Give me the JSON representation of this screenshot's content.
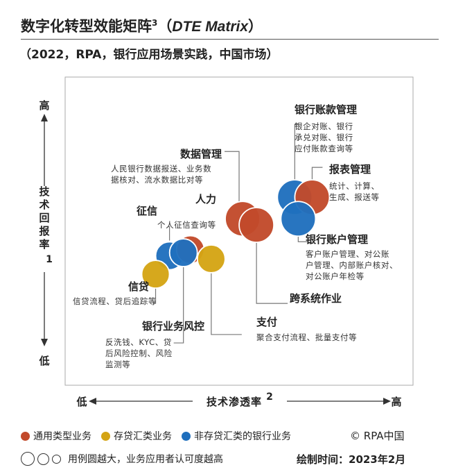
{
  "header": {
    "title_main": "数字化转型效能矩阵",
    "title_sup": "3",
    "title_open": "（",
    "title_en": "DTE Matrix",
    "title_close": "）",
    "subtitle": "（2022，RPA，银行应用场景实践，中国市场）"
  },
  "chart_data": {
    "type": "scatter",
    "title": "数字化转型效能矩阵（DTE Matrix）",
    "xlabel": "技术渗透率",
    "xlabel_sup": "2",
    "ylabel": "技术回报率",
    "ylabel_sup": "1",
    "x_low": "低",
    "x_high": "高",
    "y_low": "低",
    "y_high": "高",
    "series": [
      {
        "name": "通用类型业务",
        "color": "#c24a2b"
      },
      {
        "name": "存贷汇类业务",
        "color": "#d4a414"
      },
      {
        "name": "非存贷汇类的银行业务",
        "color": "#1f6fbd"
      }
    ],
    "points": [
      {
        "label": "征信",
        "desc": [
          "个人征信查询等"
        ],
        "category": "非存贷汇类的银行业务",
        "x": 30,
        "y": 42,
        "size": 2
      },
      {
        "label": "人力",
        "desc": [],
        "category": "通用类型业务",
        "x": 36,
        "y": 44,
        "size": 2
      },
      {
        "label": "银行业务风控",
        "desc": [
          "反洗钱、KYC、贷",
          "后风险控制、风险",
          "监测等"
        ],
        "category": "非存贷汇类的银行业务",
        "x": 34,
        "y": 43,
        "size": 2
      },
      {
        "label": "信贷",
        "desc": [
          "信贷流程、贷后追踪等"
        ],
        "category": "存贷汇类业务",
        "x": 26,
        "y": 36,
        "size": 2
      },
      {
        "label": "支付",
        "desc": [
          "聚合支付流程、批量支付等"
        ],
        "category": "存贷汇类业务",
        "x": 42,
        "y": 41,
        "size": 2
      },
      {
        "label": "数据管理",
        "desc": [
          "人民银行数据报送、业务数",
          "据核对、流水数据比对等"
        ],
        "category": "通用类型业务",
        "x": 51,
        "y": 54,
        "size": 3
      },
      {
        "label": "跨系统作业",
        "desc": [],
        "category": "通用类型业务",
        "x": 55,
        "y": 52,
        "size": 3
      },
      {
        "label": "银行账款管理",
        "desc": [
          "银企对账、银行",
          "承兑对账、银行",
          "应付账款查询等"
        ],
        "category": "非存贷汇类的银行业务",
        "x": 66,
        "y": 61,
        "size": 3
      },
      {
        "label": "报表管理",
        "desc": [
          "统计、计算、",
          "生成、报送等"
        ],
        "category": "通用类型业务",
        "x": 71,
        "y": 61,
        "size": 3
      },
      {
        "label": "银行账户管理",
        "desc": [
          "客户账户管理、对公账",
          "户管理、内部账户核对、",
          "对公账户年检等"
        ],
        "category": "非存贷汇类的银行业务",
        "x": 67,
        "y": 54,
        "size": 3
      }
    ]
  },
  "legend": {
    "items": [
      {
        "label": "通用类型业务",
        "color": "#c24a2b"
      },
      {
        "label": "存贷汇类业务",
        "color": "#d4a414"
      },
      {
        "label": "非存贷汇类的银行业务",
        "color": "#1f6fbd"
      }
    ],
    "copyright": "© RPA中国",
    "size_note": "用例圆越大，业务应用者认可度越高",
    "drawn_date": "绘制时间：2023年2月"
  }
}
